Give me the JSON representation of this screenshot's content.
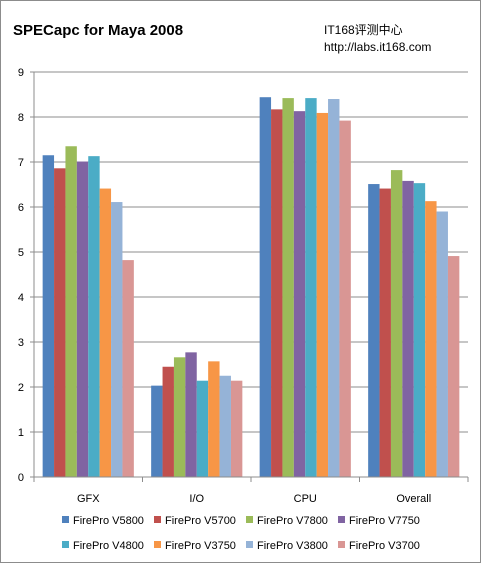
{
  "chart_data": {
    "type": "bar",
    "title": "SPECapc for Maya 2008",
    "xlabel": "",
    "ylabel": "",
    "ylim": [
      0,
      9
    ],
    "yticks": [
      "0",
      "1",
      "2",
      "3",
      "4",
      "5",
      "6",
      "7",
      "8",
      "9"
    ],
    "grid": true,
    "legend_position": "bottom",
    "categories": [
      "GFX",
      "I/O",
      "CPU",
      "Overall"
    ],
    "series": [
      {
        "name": "FirePro V5800",
        "color": "#4f81bd",
        "values": [
          7.15,
          2.03,
          8.44,
          6.51
        ]
      },
      {
        "name": "FirePro V5700",
        "color": "#c0504d",
        "values": [
          6.86,
          2.45,
          8.17,
          6.41
        ]
      },
      {
        "name": "FirePro V7800",
        "color": "#9bbb59",
        "values": [
          7.35,
          2.66,
          8.42,
          6.82
        ]
      },
      {
        "name": "FirePro V7750",
        "color": "#8064a2",
        "values": [
          7.01,
          2.77,
          8.13,
          6.58
        ]
      },
      {
        "name": "FirePro V4800",
        "color": "#4bacc6",
        "values": [
          7.13,
          2.14,
          8.42,
          6.53
        ]
      },
      {
        "name": "FirePro V3750",
        "color": "#f79646",
        "values": [
          6.41,
          2.57,
          8.09,
          6.13
        ]
      },
      {
        "name": "FirePro V3800",
        "color": "#95b3d7",
        "values": [
          6.11,
          2.25,
          8.4,
          5.9
        ]
      },
      {
        "name": "FirePro V3700",
        "color": "#d99694",
        "values": [
          4.82,
          2.14,
          7.92,
          4.91
        ]
      }
    ]
  },
  "watermark": {
    "line1": "IT168评测中心",
    "line2": "http://labs.it168.com"
  }
}
